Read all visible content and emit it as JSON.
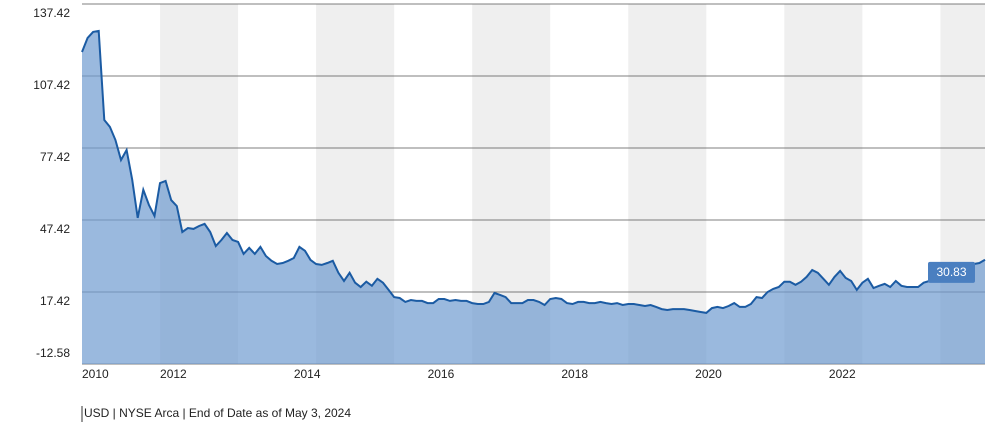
{
  "chart_data": {
    "type": "area",
    "categories": [
      "2010",
      null,
      null,
      null,
      null,
      null,
      null,
      null,
      null,
      null,
      null,
      null,
      null,
      null,
      "2012",
      null,
      null,
      null,
      null,
      null,
      null,
      null,
      null,
      null,
      null,
      null,
      null,
      null,
      null,
      null,
      null,
      null,
      null,
      null,
      null,
      null,
      null,
      null,
      "2014",
      null,
      null,
      null,
      null,
      null,
      null,
      null,
      null,
      null,
      null,
      null,
      null,
      null,
      null,
      null,
      null,
      null,
      null,
      null,
      null,
      null,
      null,
      null,
      "2016",
      null,
      null,
      null,
      null,
      null,
      null,
      null,
      null,
      null,
      null,
      null,
      null,
      null,
      null,
      null,
      null,
      null,
      null,
      null,
      null,
      null,
      null,
      null,
      "2018",
      null,
      null,
      null,
      null,
      null,
      null,
      null,
      null,
      null,
      null,
      null,
      null,
      null,
      null,
      null,
      null,
      null,
      null,
      null,
      null,
      null,
      null,
      null,
      "2020",
      null,
      null,
      null,
      null,
      null,
      null,
      null,
      null,
      null,
      null,
      null,
      null,
      null,
      null,
      null,
      null,
      null,
      null,
      null,
      null,
      null,
      null,
      null,
      "2022",
      null,
      null,
      null,
      null,
      null,
      null,
      null,
      null,
      null,
      null,
      null,
      null,
      null,
      null,
      null,
      null,
      null,
      null,
      null,
      null,
      null,
      null,
      null,
      null,
      null,
      null,
      null,
      null
    ],
    "values": [
      117.4,
      123.3,
      125.8,
      126.2,
      89.1,
      86.2,
      80.8,
      72.4,
      76.6,
      64.2,
      48.3,
      60.0,
      53.7,
      49.1,
      62.8,
      63.7,
      55.7,
      53.2,
      42.4,
      44.1,
      43.7,
      44.9,
      45.8,
      42.4,
      36.6,
      39.1,
      42.0,
      39.1,
      38.3,
      33.3,
      35.8,
      33.3,
      36.2,
      32.4,
      30.4,
      29.1,
      29.5,
      30.4,
      31.6,
      36.2,
      34.6,
      30.8,
      29.1,
      28.7,
      29.5,
      30.4,
      25.4,
      22.0,
      25.4,
      21.3,
      19.5,
      21.7,
      20.0,
      22.9,
      21.3,
      18.3,
      15.3,
      14.9,
      13.3,
      14.1,
      13.7,
      13.7,
      12.8,
      12.8,
      14.5,
      14.5,
      13.7,
      14.1,
      13.7,
      13.7,
      12.8,
      12.4,
      12.4,
      13.3,
      17.0,
      16.2,
      15.3,
      12.8,
      12.8,
      12.8,
      14.1,
      14.1,
      13.3,
      12.0,
      14.5,
      14.9,
      14.5,
      12.8,
      12.4,
      13.3,
      13.3,
      12.8,
      12.8,
      13.3,
      12.8,
      12.4,
      12.8,
      12.0,
      12.4,
      12.4,
      12.0,
      11.6,
      12.0,
      11.2,
      10.3,
      9.9,
      10.3,
      10.3,
      10.3,
      9.9,
      9.5,
      9.1,
      8.7,
      10.7,
      11.2,
      10.7,
      11.6,
      12.8,
      11.2,
      11.2,
      12.4,
      15.3,
      14.9,
      17.4,
      18.7,
      19.5,
      21.7,
      21.7,
      20.4,
      21.7,
      23.7,
      26.6,
      25.4,
      22.9,
      20.4,
      23.7,
      26.2,
      23.3,
      22.0,
      18.3,
      21.3,
      22.9,
      19.1,
      20.0,
      20.8,
      19.5,
      22.0,
      20.0,
      19.5,
      19.5,
      19.5,
      21.3,
      22.0,
      24.5,
      28.2,
      25.8,
      28.2,
      28.7,
      28.2,
      28.7,
      29.1,
      29.5,
      30.83
    ],
    "color": "#1b5ba3",
    "ylim": [
      -12.58,
      137.42
    ],
    "yticks": [
      -12.58,
      17.42,
      47.42,
      77.42,
      107.42,
      137.42
    ],
    "grid": true,
    "footer": "USD | NYSE Arca | End of Date as of May 3, 2024"
  }
}
